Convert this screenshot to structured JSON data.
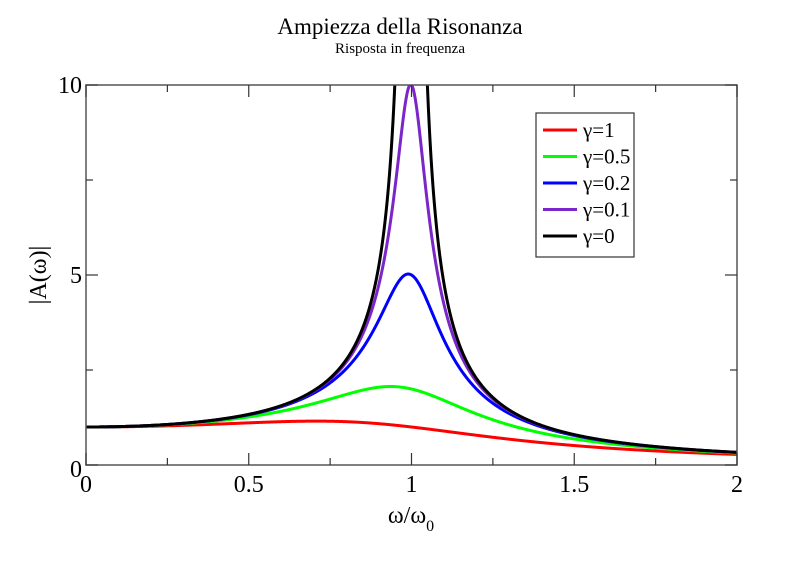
{
  "chart_data": {
    "type": "line",
    "title": "Ampiezza della Risonanza",
    "subtitle": "Risposta in frequenza",
    "xlabel": "ω/ω0",
    "xlabel_main": "ω/ω",
    "xlabel_sub": "0",
    "ylabel": "|A(ω)|",
    "xlim": [
      0,
      2
    ],
    "ylim": [
      0,
      10
    ],
    "xticks": [
      0,
      0.5,
      1,
      1.5,
      2
    ],
    "xtick_labels": [
      "0",
      "0.5",
      "1",
      "1.5",
      "2"
    ],
    "x_minor_step": 0.25,
    "yticks": [
      0,
      5,
      10
    ],
    "ytick_labels": [
      "0",
      "5",
      "10"
    ],
    "y_minor_step": 2.5,
    "grid": false,
    "legend_position": "upper right",
    "x": [
      0,
      0.1,
      0.2,
      0.3,
      0.4,
      0.5,
      0.6,
      0.7,
      0.8,
      0.85,
      0.9,
      0.95,
      0.97,
      0.99,
      1.0,
      1.01,
      1.03,
      1.05,
      1.1,
      1.15,
      1.2,
      1.3,
      1.4,
      1.5,
      1.6,
      1.7,
      1.8,
      1.9,
      2.0
    ],
    "series": [
      {
        "name": "γ=1",
        "gamma": 1,
        "color": "#ff0000",
        "values": [
          1.0,
          1.005,
          1.02,
          1.043,
          1.071,
          1.098,
          1.117,
          1.118,
          1.092,
          1.066,
          1.036,
          1.004,
          0.99,
          0.976,
          0.97,
          0.964,
          0.95,
          0.935,
          0.894,
          0.849,
          0.803,
          0.711,
          0.624,
          0.545,
          0.476,
          0.416,
          0.364,
          0.32,
          0.283
        ]
      },
      {
        "name": "γ=0.5",
        "gamma": 0.5,
        "color": "#00ff00",
        "values": [
          1.0,
          1.009,
          1.035,
          1.082,
          1.153,
          1.249,
          1.367,
          1.522,
          1.746,
          1.873,
          1.965,
          2.038,
          2.043,
          2.029,
          2.0,
          1.961,
          1.884,
          1.791,
          1.53,
          1.298,
          1.113,
          0.837,
          0.648,
          0.514,
          0.417,
          0.345,
          0.29,
          0.246,
          0.212
        ]
      },
      {
        "name": "γ=0.2",
        "gamma": 0.2,
        "color": "#0000ff",
        "values": [
          1.0,
          1.01,
          1.041,
          1.097,
          1.186,
          1.325,
          1.549,
          1.928,
          2.605,
          3.087,
          3.676,
          4.525,
          4.857,
          5.011,
          5.0,
          4.888,
          4.447,
          3.981,
          2.996,
          2.32,
          1.883,
          1.328,
          0.993,
          0.77,
          0.613,
          0.499,
          0.413,
          0.346,
          0.295
        ]
      },
      {
        "name": "γ=0.1",
        "gamma": 0.1,
        "color": "#7b26c9",
        "values": [
          1.0,
          1.01,
          1.041,
          1.098,
          1.19,
          1.331,
          1.561,
          1.955,
          2.711,
          3.326,
          4.431,
          7.166,
          8.686,
          9.84,
          10.0,
          9.706,
          7.874,
          6.006,
          4.327,
          2.894,
          2.263,
          1.438,
          1.031,
          0.793,
          0.629,
          0.51,
          0.42,
          0.351,
          0.299
        ]
      },
      {
        "name": "γ=0",
        "gamma": 0,
        "color": "#000000",
        "values": [
          1.0,
          1.01,
          1.042,
          1.099,
          1.19,
          1.333,
          1.563,
          1.961,
          2.778,
          3.604,
          5.263,
          10.256,
          16.92,
          50.25,
          null,
          49.75,
          16.42,
          9.756,
          4.762,
          3.101,
          2.273,
          1.449,
          1.042,
          0.8,
          0.641,
          0.529,
          0.446,
          0.382,
          0.333
        ]
      }
    ]
  }
}
